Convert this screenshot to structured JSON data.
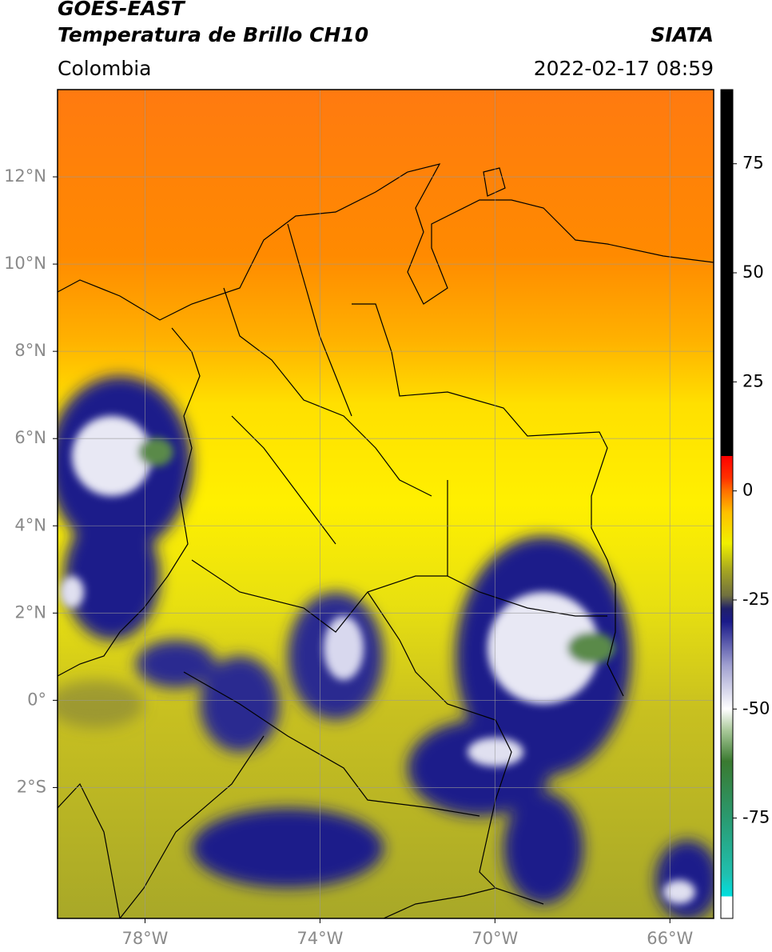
{
  "header": {
    "title": "GOES-EAST",
    "subtitle": "Temperatura de Brillo CH10",
    "region": "Colombia",
    "source": "SIATA",
    "timestamp": "2022-02-17 08:59"
  },
  "map": {
    "xlim": [
      -80,
      -65
    ],
    "ylim": [
      -5,
      14
    ],
    "grid": true,
    "xticks": [
      {
        "value": -78,
        "label": "78°W"
      },
      {
        "value": -74,
        "label": "74°W"
      },
      {
        "value": -70,
        "label": "70°W"
      },
      {
        "value": -66,
        "label": "66°W"
      }
    ],
    "yticks": [
      {
        "value": 12,
        "label": "12°N"
      },
      {
        "value": 10,
        "label": "10°N"
      },
      {
        "value": 8,
        "label": "8°N"
      },
      {
        "value": 6,
        "label": "6°N"
      },
      {
        "value": 4,
        "label": "4°N"
      },
      {
        "value": 2,
        "label": "2°N"
      },
      {
        "value": 0,
        "label": "0°"
      },
      {
        "value": -2,
        "label": "2°S"
      }
    ]
  },
  "colorbar": {
    "lim": [
      -98,
      92
    ],
    "ticks": [
      75,
      50,
      25,
      0,
      -25,
      -50,
      -75
    ],
    "stops": [
      {
        "value": -98,
        "color": "#ffffff"
      },
      {
        "value": -93,
        "color": "#ffffff"
      },
      {
        "value": -93,
        "color": "#00e0e0"
      },
      {
        "value": -88,
        "color": "#20c0b0"
      },
      {
        "value": -75,
        "color": "#2a9a70"
      },
      {
        "value": -62,
        "color": "#3a7a30"
      },
      {
        "value": -55,
        "color": "#a8c898"
      },
      {
        "value": -50,
        "color": "#ffffff"
      },
      {
        "value": -40,
        "color": "#a0a0d0"
      },
      {
        "value": -30,
        "color": "#1a1a8a"
      },
      {
        "value": -27,
        "color": "#20206a"
      },
      {
        "value": -24,
        "color": "#707040"
      },
      {
        "value": -18,
        "color": "#a8a820"
      },
      {
        "value": -12,
        "color": "#f0f000"
      },
      {
        "value": -5,
        "color": "#ffc000"
      },
      {
        "value": 0,
        "color": "#ff7000"
      },
      {
        "value": 3,
        "color": "#ff3000"
      },
      {
        "value": 8,
        "color": "#ff0000"
      },
      {
        "value": 8,
        "color": "#000000"
      },
      {
        "value": 92,
        "color": "#000000"
      }
    ]
  }
}
